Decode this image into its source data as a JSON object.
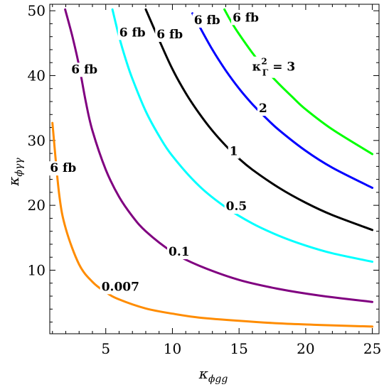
{
  "chart_data": {
    "type": "line",
    "title": "",
    "xlabel": {
      "main": "κ",
      "sub": "ϕgg"
    },
    "ylabel": {
      "main": "κ",
      "sub": "ϕγγ"
    },
    "xlim": [
      0.8,
      25.5
    ],
    "ylim": [
      0.2,
      51
    ],
    "xticks": [
      5,
      10,
      15,
      20,
      25
    ],
    "yticks": [
      10,
      20,
      30,
      40,
      50
    ],
    "grid": false,
    "legend": "none",
    "series": [
      {
        "id": "k0007",
        "value_label": "0.007",
        "color": "#ff8c00",
        "x_from": 1.0,
        "x_to": 25.0,
        "points": [
          [
            1.0,
            32.7
          ],
          [
            1.5,
            21.8
          ],
          [
            2,
            16.4
          ],
          [
            3,
            10.9
          ],
          [
            4,
            8.2
          ],
          [
            5,
            6.6
          ],
          [
            6,
            5.5
          ],
          [
            8,
            4.1
          ],
          [
            10,
            3.3
          ],
          [
            12,
            2.7
          ],
          [
            15,
            2.2
          ],
          [
            18,
            1.8
          ],
          [
            21,
            1.56
          ],
          [
            25,
            1.31
          ]
        ],
        "labels": [
          {
            "text": "6 fb",
            "x": 1.8,
            "y": 25.8
          },
          {
            "text": "0.007",
            "x": 6.1,
            "y": 7.5
          }
        ]
      },
      {
        "id": "k01",
        "value_label": "0.1",
        "color": "#800080",
        "x_from": 1.0,
        "x_to": 25.0,
        "points": [
          [
            1.95,
            50.2
          ],
          [
            2.5,
            46.0
          ],
          [
            3,
            41.5
          ],
          [
            3.5,
            36.0
          ],
          [
            4,
            31.5
          ],
          [
            5,
            25.5
          ],
          [
            6,
            21.3
          ],
          [
            7,
            18.3
          ],
          [
            8,
            16.0
          ],
          [
            10,
            12.8
          ],
          [
            12,
            10.7
          ],
          [
            15,
            8.5
          ],
          [
            18,
            7.1
          ],
          [
            21,
            6.1
          ],
          [
            25,
            5.1
          ]
        ],
        "labels": [
          {
            "text": "6 fb",
            "x": 3.4,
            "y": 41.0
          },
          {
            "text": "0.1",
            "x": 10.5,
            "y": 12.9
          }
        ]
      },
      {
        "id": "k05",
        "value_label": "0.5",
        "color": "#00ffff",
        "x_from": 1.0,
        "x_to": 25.0,
        "points": [
          [
            5.5,
            50.2
          ],
          [
            6,
            46.0
          ],
          [
            6.5,
            42.5
          ],
          [
            7,
            39.5
          ],
          [
            8,
            34.5
          ],
          [
            9,
            30.7
          ],
          [
            10,
            27.6
          ],
          [
            12,
            23.0
          ],
          [
            14,
            19.7
          ],
          [
            16,
            17.2
          ],
          [
            18,
            15.3
          ],
          [
            20,
            13.8
          ],
          [
            22,
            12.6
          ],
          [
            25,
            11.3
          ]
        ],
        "labels": [
          {
            "text": "6 fb",
            "x": 7.0,
            "y": 46.7
          },
          {
            "text": "0.5",
            "x": 14.8,
            "y": 19.9
          }
        ]
      },
      {
        "id": "k1",
        "value_label": "1",
        "color": "#000000",
        "x_from": 1.0,
        "x_to": 25.0,
        "points": [
          [
            8.0,
            50.2
          ],
          [
            9,
            45.5
          ],
          [
            10,
            41.0
          ],
          [
            11,
            37.3
          ],
          [
            12,
            34.2
          ],
          [
            13,
            31.5
          ],
          [
            14,
            29.2
          ],
          [
            15,
            27.2
          ],
          [
            16,
            25.5
          ],
          [
            18,
            22.7
          ],
          [
            20,
            20.4
          ],
          [
            22,
            18.5
          ],
          [
            25,
            16.2
          ]
        ],
        "labels": [
          {
            "text": "6 fb",
            "x": 9.8,
            "y": 46.4
          },
          {
            "text": "1",
            "x": 14.6,
            "y": 28.4
          }
        ]
      },
      {
        "id": "k2",
        "value_label": "2",
        "color": "#0000ff",
        "x_from": 1.0,
        "x_to": 25.0,
        "points": [
          [
            11.5,
            49.6
          ],
          [
            12,
            47.7
          ],
          [
            13,
            44.0
          ],
          [
            14,
            40.8
          ],
          [
            15,
            38.0
          ],
          [
            16,
            35.6
          ],
          [
            17,
            33.5
          ],
          [
            18,
            31.6
          ],
          [
            20,
            28.4
          ],
          [
            22,
            25.8
          ],
          [
            25,
            22.7
          ]
        ],
        "labels": [
          {
            "text": "6 fb",
            "x": 12.6,
            "y": 48.6
          },
          {
            "text": "2",
            "x": 16.8,
            "y": 35.0
          }
        ]
      },
      {
        "id": "k3",
        "value_label": "3",
        "color": "#00ff00",
        "x_from": 1.0,
        "x_to": 25.0,
        "points": [
          [
            13.9,
            50.2
          ],
          [
            14.5,
            48.0
          ],
          [
            15,
            46.4
          ],
          [
            16,
            43.5
          ],
          [
            17,
            40.9
          ],
          [
            18,
            38.7
          ],
          [
            19,
            36.7
          ],
          [
            20,
            34.8
          ],
          [
            22,
            31.7
          ],
          [
            25,
            27.9
          ]
        ],
        "labels": [
          {
            "text": "6 fb",
            "x": 15.5,
            "y": 49.0
          },
          {
            "text": "κ",
            "x": 17.6,
            "y": 41.4,
            "sub": "Γ",
            "sup": "2",
            "tail": "= 3"
          }
        ]
      }
    ]
  }
}
